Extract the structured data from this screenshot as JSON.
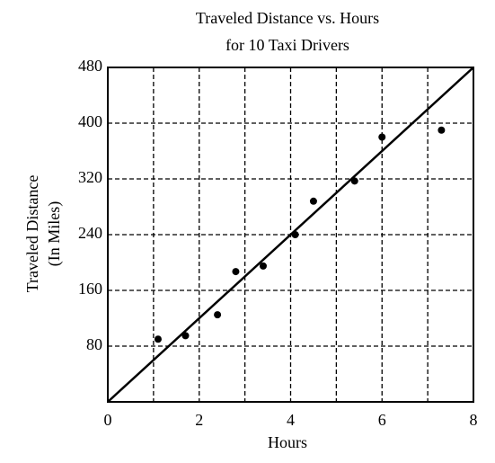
{
  "chart_data": {
    "type": "scatter",
    "title": [
      "Traveled Distance vs. Hours",
      "for 10 Taxi Drivers"
    ],
    "xlabel": "Hours",
    "ylabel": [
      "Traveled Distance",
      "(In Miles)"
    ],
    "x": [
      1.1,
      1.7,
      2.4,
      2.8,
      3.4,
      4.1,
      4.5,
      5.4,
      6.0,
      7.3
    ],
    "values": [
      90,
      95,
      125,
      187,
      195,
      240,
      288,
      317,
      380,
      390
    ],
    "color": "#000000",
    "fit_line": {
      "x": [
        0,
        8
      ],
      "values": [
        0,
        480
      ]
    },
    "xlim": [
      0,
      8
    ],
    "ylim": [
      0,
      480
    ],
    "xticks": [
      0,
      2,
      4,
      6,
      8
    ],
    "xminor_ticks": [
      1,
      3,
      5,
      7
    ],
    "yticks": [
      80,
      160,
      240,
      320,
      400,
      480
    ],
    "grid": true
  }
}
